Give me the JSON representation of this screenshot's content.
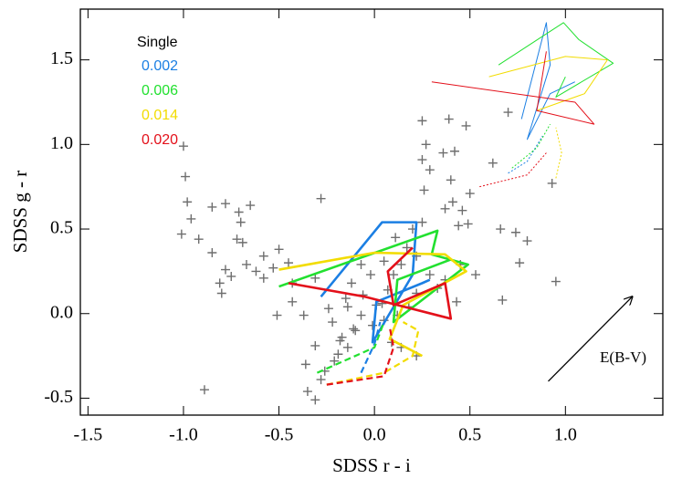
{
  "chart_data": {
    "type": "scatter",
    "x_label": "SDSS r - i",
    "y_label": "SDSS g - r",
    "xlim": [
      -1.54,
      1.51
    ],
    "ylim": [
      -0.6,
      1.8
    ],
    "xticks": [
      -1.5,
      {
        "value": -1.0,
        "label": "-1.0"
      },
      -0.5,
      {
        "value": 0.0,
        "label": "0.0"
      },
      0.5,
      {
        "value": 1.0,
        "label": "1.0"
      }
    ],
    "yticks": [
      -0.5,
      {
        "value": 0.0,
        "label": "0.0"
      },
      0.5,
      {
        "value": 1.0,
        "label": "1.0"
      },
      1.5
    ],
    "points": {
      "color": "#6e6e6e",
      "x": [
        -1.0,
        -0.99,
        -0.98,
        -0.96,
        -1.01,
        -0.92,
        -0.85,
        -0.78,
        -0.85,
        -0.78,
        -0.81,
        -0.8,
        -0.75,
        -0.71,
        -0.7,
        -0.72,
        -0.69,
        -0.65,
        -0.67,
        -0.62,
        -0.58,
        -0.58,
        -0.53,
        -0.5,
        -0.45,
        -0.43,
        -0.43,
        -0.51,
        -0.37,
        -0.28,
        -0.31,
        -0.24,
        -0.22,
        -0.15,
        -0.14,
        -0.17,
        -0.19,
        -0.21,
        -0.14,
        -0.11,
        -0.07,
        -0.06,
        -0.02,
        0.04,
        0.07,
        0.1,
        0.14,
        0.17,
        0.2,
        0.25,
        0.26,
        0.25,
        0.27,
        0.29,
        0.39,
        0.4,
        0.41,
        0.44,
        0.48,
        0.49,
        0.5,
        0.66,
        0.74,
        0.8,
        0.76,
        0.67,
        0.62,
        0.7,
        0.93,
        0.95,
        0.25,
        0.36,
        0.42,
        -0.89,
        -0.35,
        -0.31,
        -0.28,
        -0.26,
        -0.36,
        -0.31,
        -0.18,
        -0.1,
        0.05,
        0.12,
        0.18,
        0.22,
        0.29,
        0.33,
        0.37,
        0.43,
        0.53,
        0.45,
        0.05,
        0.09,
        0.14,
        0.22,
        -0.01,
        0.01,
        -0.12,
        -0.07,
        0.11,
        0.37,
        0.46,
        0.22
      ],
      "y": [
        0.99,
        0.81,
        0.66,
        0.56,
        0.47,
        0.44,
        0.63,
        0.65,
        0.36,
        0.26,
        0.18,
        0.12,
        0.22,
        0.6,
        0.54,
        0.44,
        0.42,
        0.64,
        0.29,
        0.25,
        0.34,
        0.21,
        0.27,
        0.38,
        0.3,
        0.18,
        0.07,
        -0.01,
        -0.01,
        0.68,
        0.21,
        0.03,
        -0.05,
        0.09,
        0.04,
        -0.14,
        -0.24,
        -0.28,
        -0.2,
        -0.09,
        -0.01,
        0.11,
        0.23,
        0.06,
        0.14,
        0.23,
        0.29,
        0.39,
        0.5,
        0.54,
        0.73,
        0.91,
        1.0,
        0.85,
        1.15,
        0.79,
        0.66,
        0.52,
        1.11,
        0.53,
        0.71,
        0.5,
        0.48,
        0.43,
        0.3,
        0.08,
        0.89,
        1.19,
        0.77,
        0.19,
        1.14,
        0.95,
        0.96,
        -0.45,
        -0.46,
        -0.51,
        -0.39,
        -0.34,
        -0.3,
        -0.19,
        -0.16,
        -0.1,
        -0.04,
        -0.01,
        0.04,
        0.12,
        0.23,
        0.15,
        0.2,
        0.07,
        0.23,
        0.29,
        0.31,
        -0.17,
        -0.2,
        -0.25,
        -0.07,
        0.05,
        0.18,
        0.29,
        0.45,
        0.62,
        0.61,
        0.34
      ]
    },
    "legend_title": "Single",
    "series": [
      {
        "name": "0.002",
        "color": "#1b7fe3",
        "segments": [
          {
            "style": "thick",
            "x": [
              -0.28,
              0.04,
              0.22,
              0.2,
              -0.01,
              0.01,
              0.25,
              0.29
            ],
            "y": [
              0.1,
              0.54,
              0.54,
              0.23,
              -0.17,
              0.07,
              0.18,
              0.2
            ]
          },
          {
            "style": "dashed",
            "x": [
              -0.07,
              0.0,
              0.03
            ],
            "y": [
              -0.35,
              -0.18,
              -0.05
            ]
          },
          {
            "style": "thin",
            "x": [
              0.77,
              0.9,
              0.92,
              0.8,
              0.92,
              1.05
            ],
            "y": [
              1.15,
              1.72,
              1.47,
              1.03,
              1.3,
              1.37
            ]
          },
          {
            "style": "dotted",
            "x": [
              0.7,
              0.8,
              0.88
            ],
            "y": [
              0.83,
              0.9,
              1.05
            ]
          }
        ]
      },
      {
        "name": "0.006",
        "color": "#22e030",
        "segments": [
          {
            "style": "thick",
            "x": [
              -0.5,
              0.33,
              0.3,
              0.49,
              0.1,
              0.12,
              0.4
            ],
            "y": [
              0.16,
              0.49,
              0.35,
              0.29,
              -0.05,
              0.2,
              0.32
            ]
          },
          {
            "style": "dashed",
            "x": [
              -0.3,
              0.0,
              0.05
            ],
            "y": [
              -0.35,
              -0.2,
              -0.05
            ]
          },
          {
            "style": "thin",
            "x": [
              0.65,
              0.99,
              1.07,
              1.25,
              0.95,
              1.0
            ],
            "y": [
              1.47,
              1.72,
              1.62,
              1.48,
              1.28,
              1.4
            ]
          },
          {
            "style": "dotted",
            "x": [
              0.72,
              0.85,
              0.92
            ],
            "y": [
              0.86,
              0.98,
              1.12
            ]
          }
        ]
      },
      {
        "name": "0.014",
        "color": "#f2dc00",
        "segments": [
          {
            "style": "thick",
            "x": [
              -0.5,
              0.0,
              0.37,
              0.48,
              0.15,
              0.08,
              0.25
            ],
            "y": [
              0.26,
              0.36,
              0.35,
              0.25,
              0.05,
              -0.15,
              -0.25
            ]
          },
          {
            "style": "dashed",
            "x": [
              -0.25,
              0.05,
              0.2,
              0.23,
              0.15
            ],
            "y": [
              -0.42,
              -0.35,
              -0.25,
              -0.1,
              -0.05
            ]
          },
          {
            "style": "thin",
            "x": [
              0.6,
              1.0,
              1.22,
              1.1,
              0.85
            ],
            "y": [
              1.4,
              1.52,
              1.5,
              1.3,
              1.2
            ]
          },
          {
            "style": "dotted",
            "x": [
              0.95,
              0.98,
              0.95
            ],
            "y": [
              0.8,
              0.95,
              1.1
            ]
          }
        ]
      },
      {
        "name": "0.020",
        "color": "#e3101a",
        "segments": [
          {
            "style": "thick",
            "x": [
              -0.45,
              -0.05,
              0.4,
              0.37,
              0.1,
              0.07,
              0.2
            ],
            "y": [
              0.18,
              0.1,
              -0.03,
              0.18,
              0.05,
              0.25,
              0.39
            ]
          },
          {
            "style": "dashed",
            "x": [
              -0.25,
              0.05,
              0.1,
              0.08
            ],
            "y": [
              -0.42,
              -0.37,
              -0.2,
              -0.08
            ]
          },
          {
            "style": "thin",
            "x": [
              0.3,
              1.05,
              1.15,
              0.85,
              0.9
            ],
            "y": [
              1.37,
              1.25,
              1.12,
              1.2,
              1.55
            ]
          },
          {
            "style": "dotted",
            "x": [
              0.55,
              0.8,
              0.9
            ],
            "y": [
              0.75,
              0.82,
              0.95
            ]
          }
        ]
      }
    ],
    "arrow": {
      "label": "E(B-V)",
      "x": [
        0.91,
        1.35
      ],
      "y": [
        -0.4,
        0.1
      ]
    }
  }
}
